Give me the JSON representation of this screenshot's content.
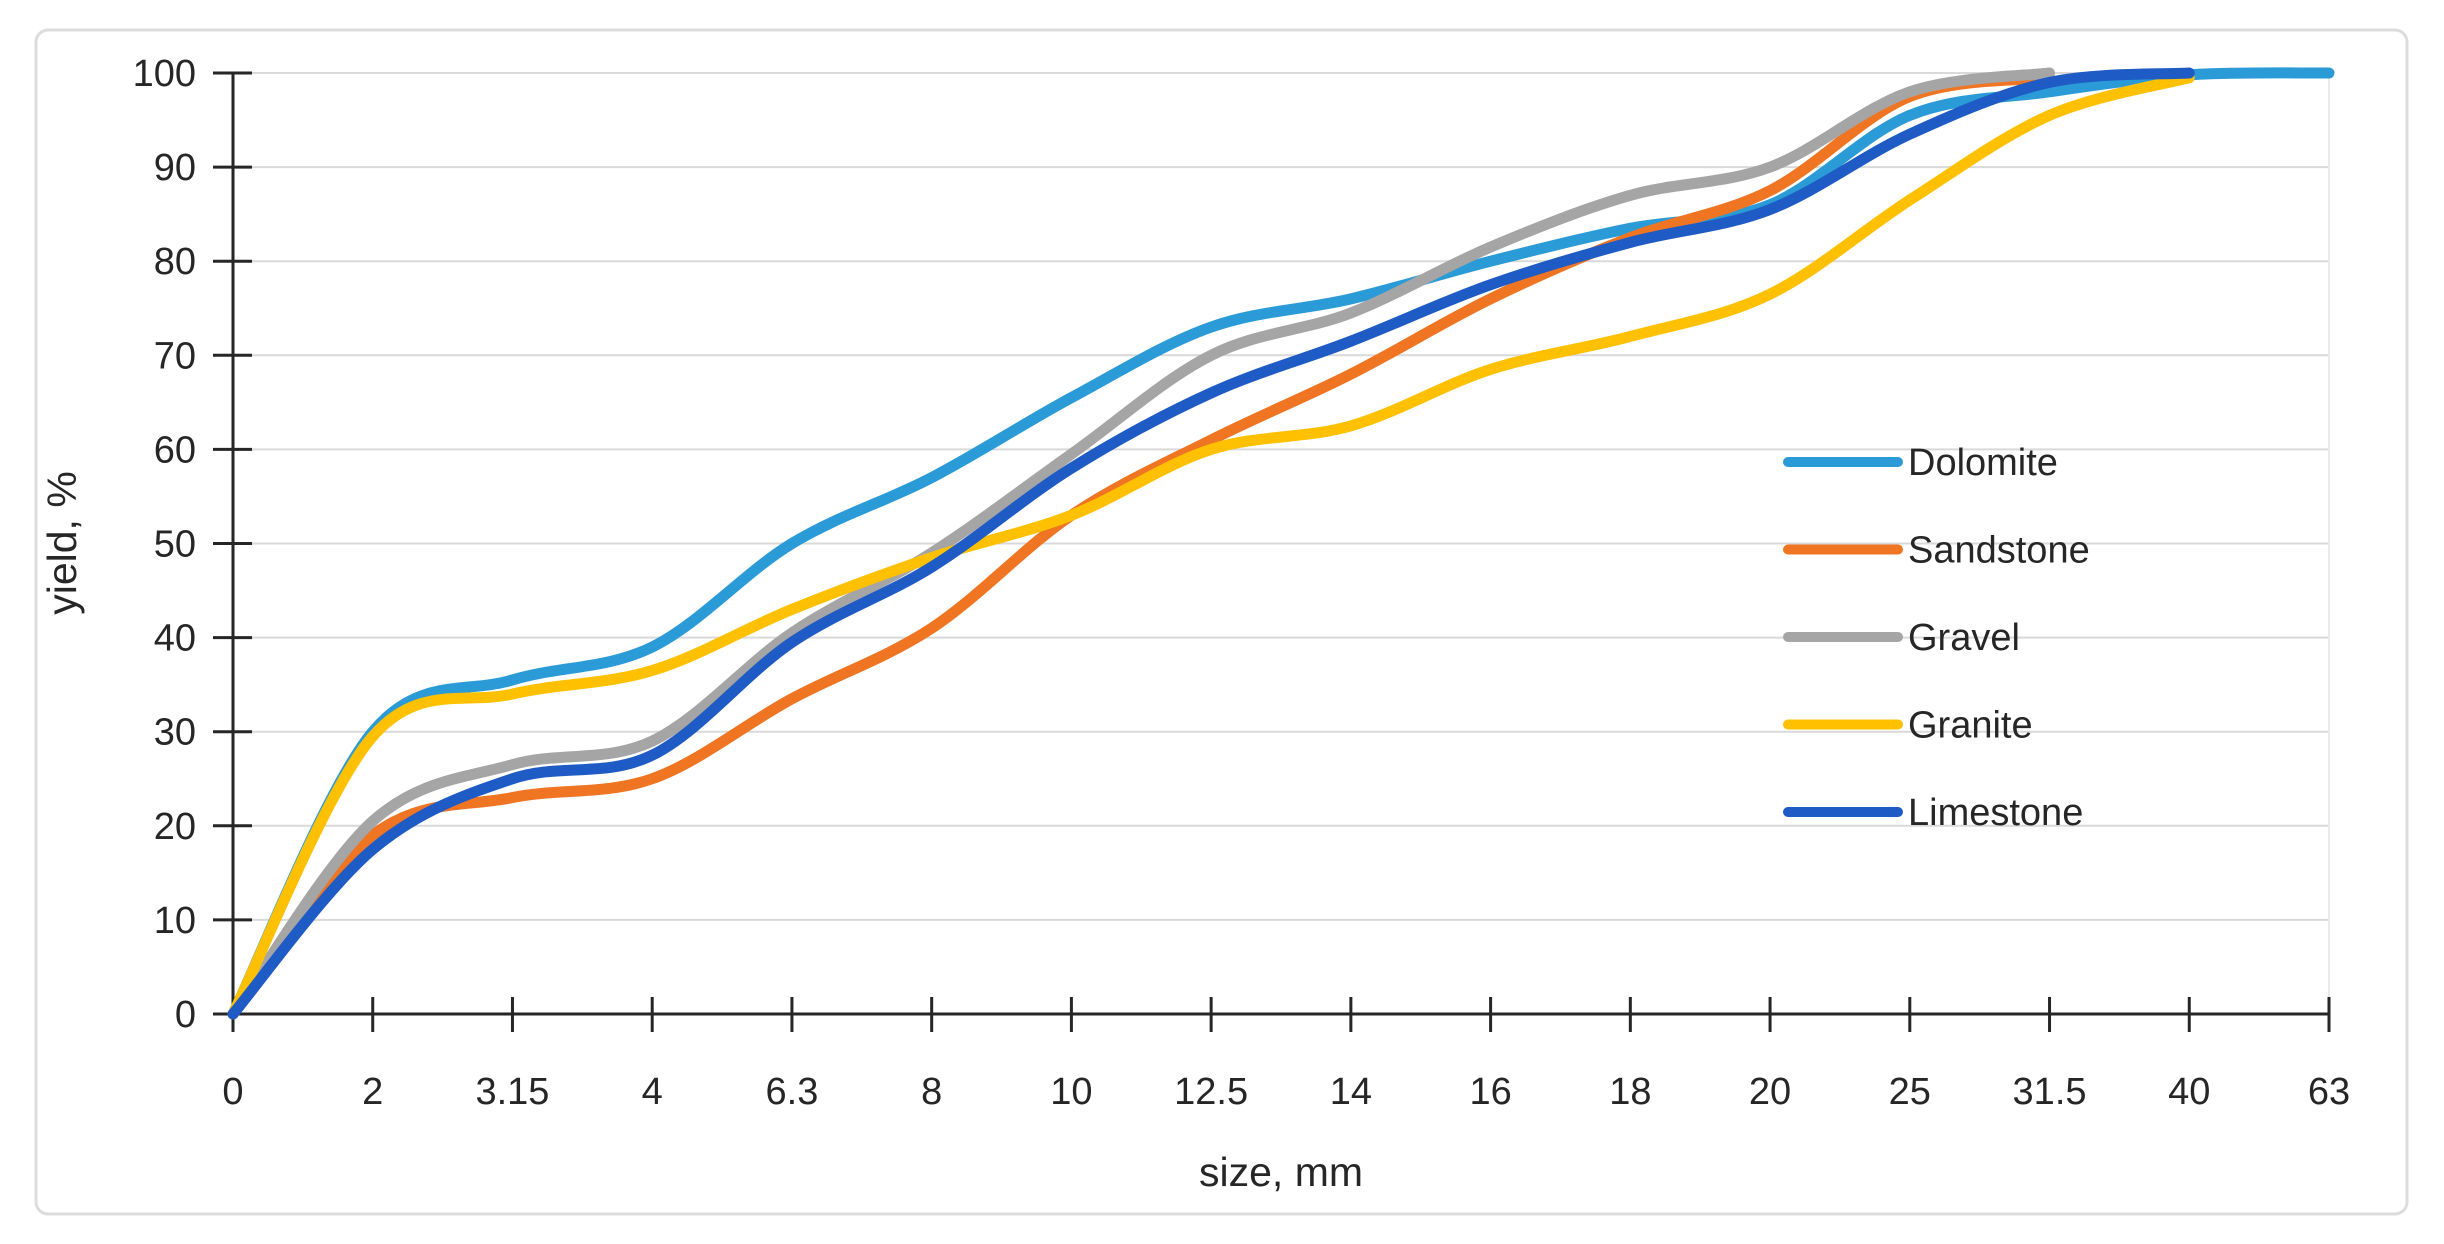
{
  "chart_data": {
    "type": "line",
    "title": "",
    "xlabel": "size, mm",
    "ylabel": "yield, %",
    "x_axis": {
      "scale": "categorical",
      "categories": [
        "0",
        "2",
        "3.15",
        "4",
        "6.3",
        "8",
        "10",
        "12.5",
        "14",
        "16",
        "18",
        "20",
        "25",
        "31.5",
        "40",
        "63"
      ]
    },
    "y_axis": {
      "min": 0,
      "max": 100,
      "ticks": [
        0,
        10,
        20,
        30,
        40,
        50,
        60,
        70,
        80,
        90,
        100
      ]
    },
    "grid": "horizontal",
    "line_smoothing": true,
    "legend_position": "inside-right",
    "series": [
      {
        "name": "Dolomite",
        "color": "#2B9BD7",
        "values": [
          0,
          30,
          35.5,
          39,
          50,
          57,
          65.5,
          73,
          76,
          80,
          83.5,
          86,
          95.5,
          98,
          99.8,
          100
        ]
      },
      {
        "name": "Sandstone",
        "color": "#EF7523",
        "values": [
          0,
          19,
          23,
          25,
          33.5,
          41,
          53,
          61,
          68,
          76,
          82.5,
          87.5,
          97.5,
          99.5,
          null,
          null
        ]
      },
      {
        "name": "Gravel",
        "color": "#A5A5A5",
        "values": [
          0,
          20.5,
          26.5,
          29,
          40.5,
          49,
          59.5,
          70,
          74.5,
          81.5,
          87,
          90,
          98,
          100,
          null,
          null
        ]
      },
      {
        "name": "Granite",
        "color": "#FFC000",
        "values": [
          0,
          29.5,
          34,
          36.5,
          43,
          48.5,
          53,
          60,
          62.5,
          68.5,
          72,
          76.5,
          86.5,
          95.5,
          99.5,
          null
        ]
      },
      {
        "name": "Limestone",
        "color": "#1F5BC4",
        "values": [
          0,
          17.5,
          25,
          27.5,
          39.5,
          47.5,
          58,
          66,
          71.5,
          77.5,
          82,
          85.5,
          93.5,
          99,
          100,
          null
        ]
      }
    ]
  },
  "colors": {
    "background": "#FFFFFF",
    "frame_border": "#DCDCDC",
    "axis": "#262626",
    "grid": "#D9D9D9",
    "plot_right_edge": "#E9E9E9",
    "label": "#262626"
  }
}
